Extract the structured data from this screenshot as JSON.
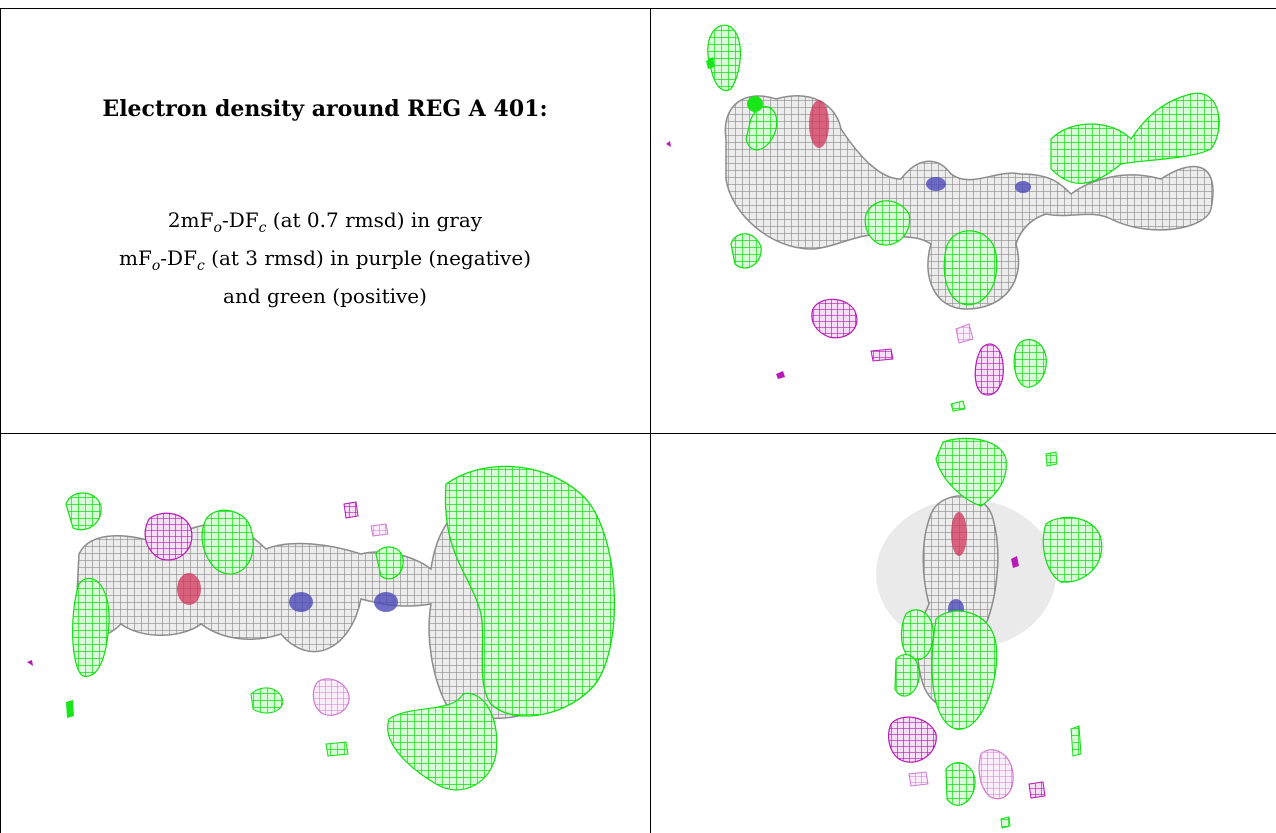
{
  "caption": {
    "title": "Electron density around REG A 401:",
    "line1": {
      "prefix": "2mF",
      "sub1": "o",
      "mid": "-DF",
      "sub2": "c",
      "suffix": " (at 0.7 rmsd) in gray"
    },
    "line2": {
      "prefix": "mF",
      "sub1": "o",
      "mid": "-DF",
      "sub2": "c",
      "suffix": " (at 3 rmsd) in purple (negative)"
    },
    "line3": "and green (positive)"
  },
  "colors": {
    "gray_map": "#9a9a9a",
    "positive": "#19e619",
    "negative": "#c21cc2",
    "oxygen": "#d2335a",
    "nitrogen": "#4a4ab8"
  },
  "panels": [
    "density-view-top-right",
    "density-view-bottom-left",
    "density-view-bottom-right"
  ]
}
